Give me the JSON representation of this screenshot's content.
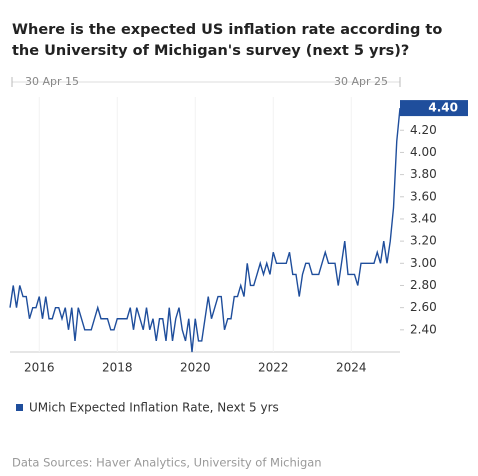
{
  "chart_data": {
    "type": "line",
    "title": "Where is the expected US inflation rate according to the University of Michigan's survey (next 5 yrs)?",
    "range_labels": [
      "30 Apr 15",
      "30 Apr 25"
    ],
    "x": [
      "2015-04",
      "2015-05",
      "2015-06",
      "2015-07",
      "2015-08",
      "2015-09",
      "2015-10",
      "2015-11",
      "2015-12",
      "2016-01",
      "2016-02",
      "2016-03",
      "2016-04",
      "2016-05",
      "2016-06",
      "2016-07",
      "2016-08",
      "2016-09",
      "2016-10",
      "2016-11",
      "2016-12",
      "2017-01",
      "2017-02",
      "2017-03",
      "2017-04",
      "2017-05",
      "2017-06",
      "2017-07",
      "2017-08",
      "2017-09",
      "2017-10",
      "2017-11",
      "2017-12",
      "2018-01",
      "2018-02",
      "2018-03",
      "2018-04",
      "2018-05",
      "2018-06",
      "2018-07",
      "2018-08",
      "2018-09",
      "2018-10",
      "2018-11",
      "2018-12",
      "2019-01",
      "2019-02",
      "2019-03",
      "2019-04",
      "2019-05",
      "2019-06",
      "2019-07",
      "2019-08",
      "2019-09",
      "2019-10",
      "2019-11",
      "2019-12",
      "2020-01",
      "2020-02",
      "2020-03",
      "2020-04",
      "2020-05",
      "2020-06",
      "2020-07",
      "2020-08",
      "2020-09",
      "2020-10",
      "2020-11",
      "2020-12",
      "2021-01",
      "2021-02",
      "2021-03",
      "2021-04",
      "2021-05",
      "2021-06",
      "2021-07",
      "2021-08",
      "2021-09",
      "2021-10",
      "2021-11",
      "2021-12",
      "2022-01",
      "2022-02",
      "2022-03",
      "2022-04",
      "2022-05",
      "2022-06",
      "2022-07",
      "2022-08",
      "2022-09",
      "2022-10",
      "2022-11",
      "2022-12",
      "2023-01",
      "2023-02",
      "2023-03",
      "2023-04",
      "2023-05",
      "2023-06",
      "2023-07",
      "2023-08",
      "2023-09",
      "2023-10",
      "2023-11",
      "2023-12",
      "2024-01",
      "2024-02",
      "2024-03",
      "2024-04",
      "2024-05",
      "2024-06",
      "2024-07",
      "2024-08",
      "2024-09",
      "2024-10",
      "2024-11",
      "2024-12",
      "2025-01",
      "2025-02",
      "2025-03",
      "2025-04"
    ],
    "series": [
      {
        "name": "UMich Expected Inflation Rate, Next 5 yrs",
        "color": "#1f4e9c",
        "values": [
          2.6,
          2.8,
          2.6,
          2.8,
          2.7,
          2.7,
          2.5,
          2.6,
          2.6,
          2.7,
          2.5,
          2.7,
          2.5,
          2.5,
          2.6,
          2.6,
          2.5,
          2.6,
          2.4,
          2.6,
          2.3,
          2.6,
          2.5,
          2.4,
          2.4,
          2.4,
          2.5,
          2.6,
          2.5,
          2.5,
          2.5,
          2.4,
          2.4,
          2.5,
          2.5,
          2.5,
          2.5,
          2.6,
          2.4,
          2.6,
          2.5,
          2.4,
          2.6,
          2.4,
          2.5,
          2.3,
          2.5,
          2.5,
          2.3,
          2.6,
          2.3,
          2.5,
          2.6,
          2.4,
          2.3,
          2.5,
          2.2,
          2.5,
          2.3,
          2.3,
          2.5,
          2.7,
          2.5,
          2.6,
          2.7,
          2.7,
          2.4,
          2.5,
          2.5,
          2.7,
          2.7,
          2.8,
          2.7,
          3.0,
          2.8,
          2.8,
          2.9,
          3.0,
          2.9,
          3.0,
          2.9,
          3.1,
          3.0,
          3.0,
          3.0,
          3.0,
          3.1,
          2.9,
          2.9,
          2.7,
          2.9,
          3.0,
          3.0,
          2.9,
          2.9,
          2.9,
          3.0,
          3.1,
          3.0,
          3.0,
          3.0,
          2.8,
          3.0,
          3.2,
          2.9,
          2.9,
          2.9,
          2.8,
          3.0,
          3.0,
          3.0,
          3.0,
          3.0,
          3.1,
          3.0,
          3.2,
          3.0,
          3.2,
          3.5,
          4.1,
          4.4
        ],
        "value_labels": [
          null,
          null,
          null,
          null,
          null,
          null,
          null,
          null,
          null,
          null,
          null,
          null,
          null,
          null,
          null,
          null,
          null,
          null,
          null,
          null,
          null,
          null,
          null,
          null,
          null,
          null,
          null,
          null,
          null,
          null,
          null,
          null,
          null,
          null,
          null,
          null,
          null,
          null,
          null,
          null,
          null,
          null,
          null,
          null,
          null,
          null,
          null,
          null,
          null,
          null,
          null,
          null,
          null,
          null,
          null,
          null,
          null,
          null,
          null,
          null,
          null,
          null,
          null,
          null,
          null,
          null,
          null,
          null,
          null,
          null,
          null,
          null,
          null,
          null,
          null,
          null,
          null,
          null,
          null,
          null,
          null,
          null,
          null,
          null,
          null,
          null,
          null,
          null,
          null,
          null,
          null,
          null,
          null,
          null,
          null,
          null,
          null,
          null,
          null,
          null,
          null,
          null,
          null,
          null,
          null,
          null,
          null,
          null,
          null,
          null,
          null,
          null,
          null,
          null,
          null,
          null,
          null,
          null,
          null,
          null,
          "4.40"
        ]
      }
    ],
    "xlim": [
      "2015-04",
      "2025-04"
    ],
    "xticks": [
      2016,
      2018,
      2020,
      2022,
      2024
    ],
    "ylim": [
      2.2,
      4.5
    ],
    "yticks": [
      {
        "value": 2.4,
        "label": "2.40"
      },
      {
        "value": 2.6,
        "label": "2.60"
      },
      {
        "value": 2.8,
        "label": "2.80"
      },
      {
        "value": 3.0,
        "label": "3.00"
      },
      {
        "value": 3.2,
        "label": "3.20"
      },
      {
        "value": 3.4,
        "label": "3.40"
      },
      {
        "value": 3.6,
        "label": "3.60"
      },
      {
        "value": 3.8,
        "label": "3.80"
      },
      {
        "value": 4.0,
        "label": "4.00"
      },
      {
        "value": 4.2,
        "label": "4.20"
      }
    ],
    "grid": true,
    "legend": "bottom-left",
    "source": "Data Sources: Haver Analytics, University of Michigan"
  }
}
